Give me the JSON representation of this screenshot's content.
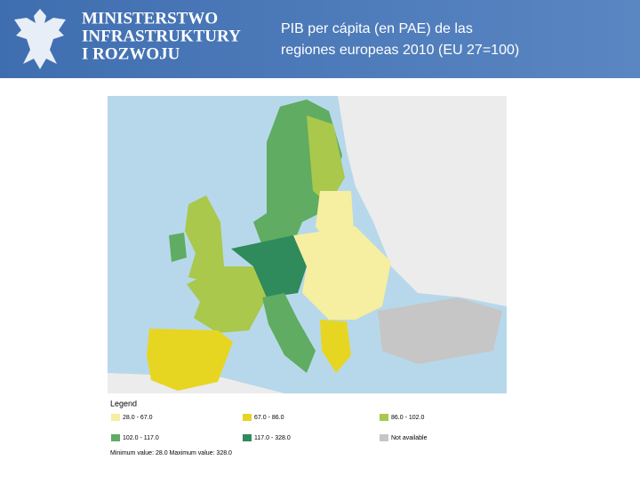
{
  "header": {
    "ministry": [
      "MINISTERSTWO",
      "INFRASTRUKTURY",
      "I ROZWOJU"
    ],
    "title": [
      "PIB per cápita (en PAE) de las",
      "regiones europeas 2010 (EU 27=100)"
    ]
  },
  "map": {
    "legend": {
      "title": "Legend",
      "items": [
        {
          "label": "28.0 - 67.0",
          "color": "#f6eea0"
        },
        {
          "label": "67.0 - 86.0",
          "color": "#e6d622"
        },
        {
          "label": "86.0 - 102.0",
          "color": "#a9c84c"
        },
        {
          "label": "102.0 - 117.0",
          "color": "#5fac62"
        },
        {
          "label": "117.0 - 328.0",
          "color": "#2f8a5c"
        },
        {
          "label": "Not available",
          "color": "#c6c6c6"
        }
      ],
      "note": "Minimum value: 28.0 Maximum value: 328.0"
    }
  }
}
